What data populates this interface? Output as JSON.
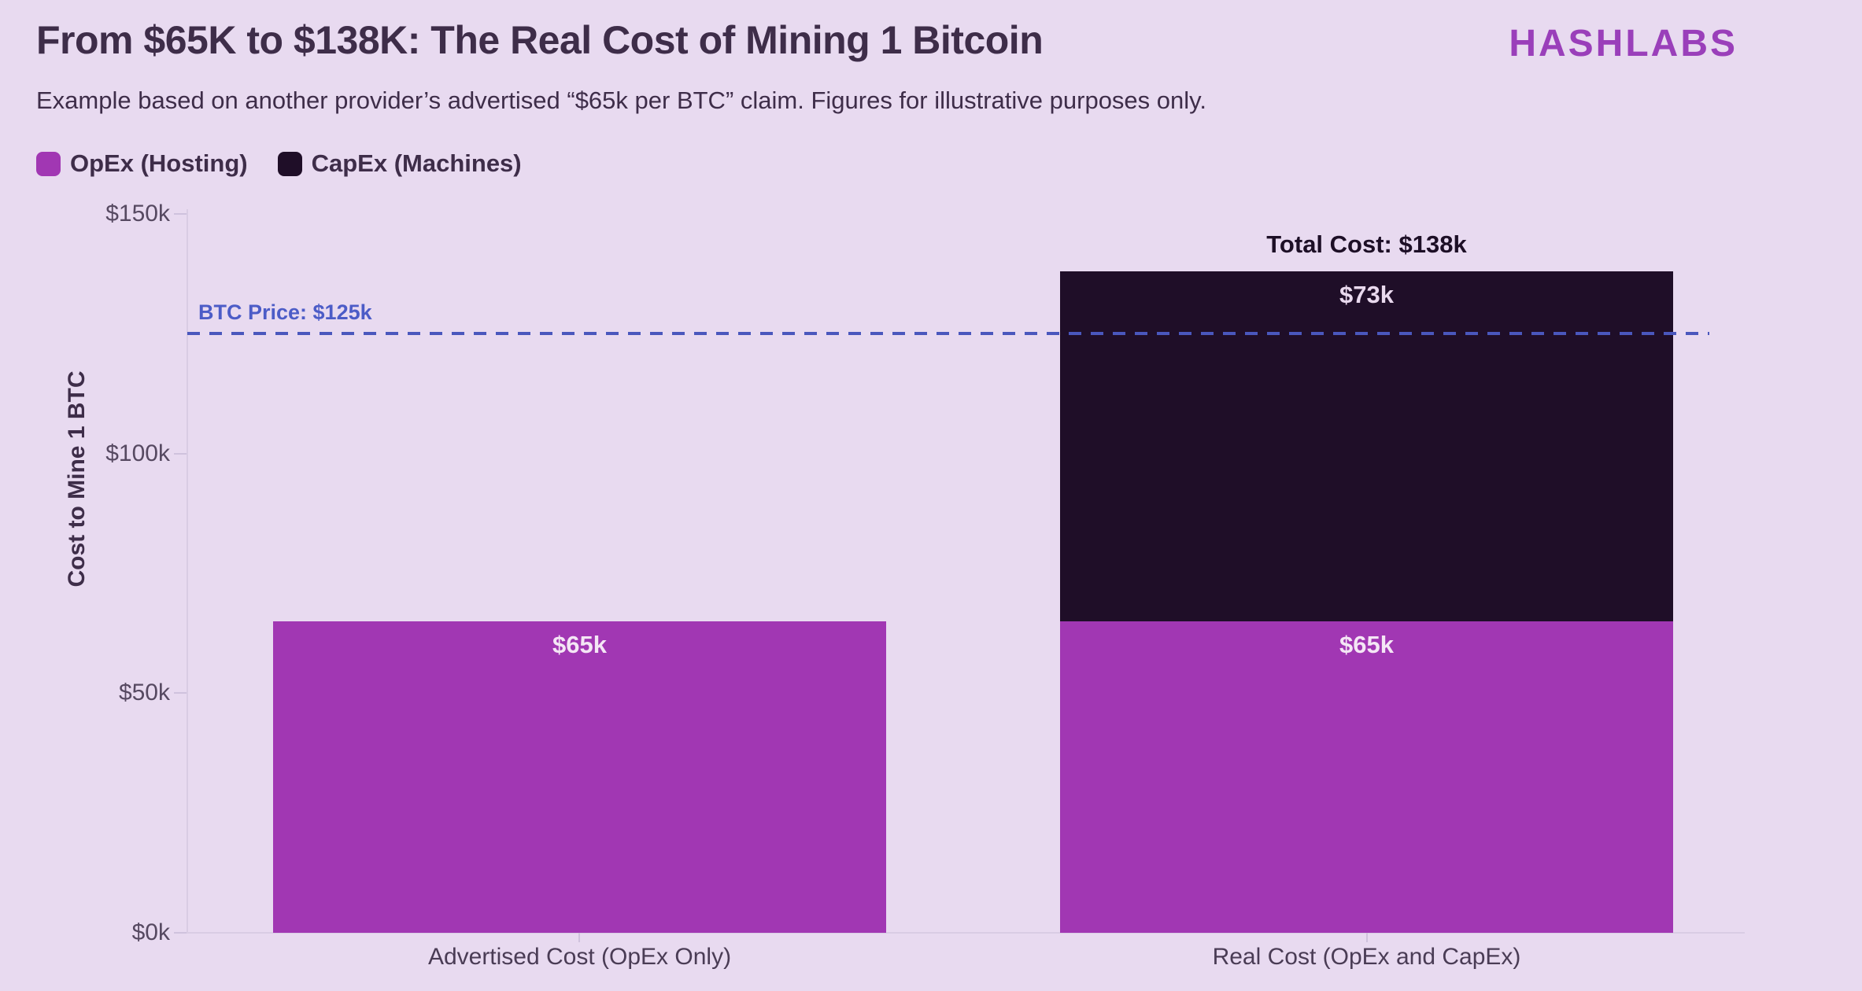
{
  "header": {
    "title": "From $65K to $138K: The Real Cost of Mining 1 Bitcoin",
    "subtitle": "Example based on another provider’s advertised “$65k per BTC” claim. Figures for illustrative purposes only.",
    "brand": "HASHLABS"
  },
  "legend": [
    {
      "label": "OpEx (Hosting)",
      "color": "#a137b3"
    },
    {
      "label": "CapEx (Machines)",
      "color": "#1f0e28"
    }
  ],
  "colors": {
    "background": "#e8daf0",
    "title_text": "#3e2d49",
    "brand_purple": "#9a3fba",
    "opex_purple": "#a137b3",
    "capex_dark": "#1f0e28",
    "reference_blue": "#4a57bd",
    "axis_line": "#d9cce4"
  },
  "chart_data": {
    "type": "bar",
    "stacked": true,
    "title": "From $65K to $138K: The Real Cost of Mining 1 Bitcoin",
    "subtitle": "Example based on another provider’s advertised “$65k per BTC” claim. Figures for illustrative purposes only.",
    "categories": [
      "Advertised Cost (OpEx Only)",
      "Real Cost (OpEx and CapEx)"
    ],
    "series": [
      {
        "name": "OpEx (Hosting)",
        "color": "#a137b3",
        "values": [
          65,
          65
        ]
      },
      {
        "name": "CapEx (Machines)",
        "color": "#1f0e28",
        "values": [
          0,
          73
        ]
      }
    ],
    "bar_value_labels": {
      "advertised_opex": "$65k",
      "real_opex": "$65k",
      "real_capex": "$73k"
    },
    "totals": {
      "advertised": 65,
      "real": 138
    },
    "total_label": "Total Cost: $138k",
    "reference_line": {
      "label": "BTC Price: $125k",
      "value": 125,
      "color": "#4a57bd"
    },
    "xlabel": "",
    "ylabel": "Cost to Mine 1 BTC",
    "ylim": [
      0,
      150
    ],
    "yticks": [
      {
        "value": 0,
        "label": "$0k"
      },
      {
        "value": 50,
        "label": "$50k"
      },
      {
        "value": 100,
        "label": "$100k"
      },
      {
        "value": 150,
        "label": "$150k"
      }
    ],
    "grid": false,
    "legend_position": "top-left"
  }
}
